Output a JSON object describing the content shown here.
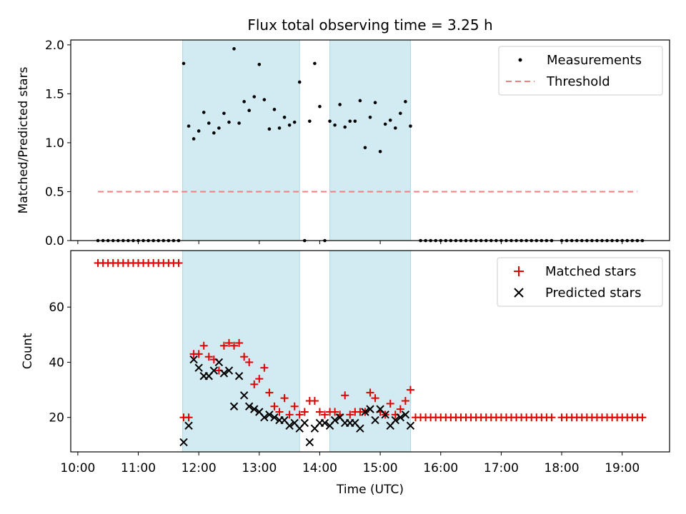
{
  "chart_data": {
    "title": "Flux total observing time = 3.25 h",
    "xlabel": "Time (UTC)",
    "x_ticks": [
      "10:00",
      "11:00",
      "12:00",
      "13:00",
      "14:00",
      "15:00",
      "16:00",
      "17:00",
      "18:00",
      "19:00"
    ],
    "xlim": [
      "09:53",
      "19:47"
    ],
    "colors": {
      "measurement": "#000000",
      "threshold": "#f08080",
      "matched": "#e00000",
      "predicted": "#000000",
      "shade": "#add8e6"
    },
    "shaded_intervals": [
      [
        "11:44",
        "13:40"
      ],
      [
        "14:10",
        "15:30"
      ]
    ],
    "panels": [
      {
        "type": "scatter",
        "ylabel": "Matched/Predicted stars",
        "ylim": [
          0,
          2.05
        ],
        "y_ticks": [
          "0.0",
          "0.5",
          "1.0",
          "1.5",
          "2.0"
        ],
        "legend": [
          "Measurements",
          "Threshold"
        ],
        "legend_position": "top-right",
        "threshold": {
          "y": 0.5,
          "x_range": [
            "10:20",
            "19:15"
          ]
        },
        "zero_points": {
          "before": {
            "start": "10:20",
            "end": "11:40",
            "step_min": 5
          },
          "after": [
            {
              "start": "15:40",
              "end": "17:50",
              "step_min": 5
            },
            {
              "start": "18:00",
              "end": "19:20",
              "step_min": 5
            }
          ]
        },
        "points": [
          [
            "11:45",
            1.81
          ],
          [
            "11:50",
            1.17
          ],
          [
            "11:55",
            1.04
          ],
          [
            "12:00",
            1.12
          ],
          [
            "12:05",
            1.31
          ],
          [
            "12:10",
            1.2
          ],
          [
            "12:15",
            1.1
          ],
          [
            "12:20",
            1.15
          ],
          [
            "12:25",
            1.3
          ],
          [
            "12:30",
            1.21
          ],
          [
            "12:35",
            1.96
          ],
          [
            "12:40",
            1.2
          ],
          [
            "12:45",
            1.42
          ],
          [
            "12:50",
            1.33
          ],
          [
            "12:55",
            1.47
          ],
          [
            "13:00",
            1.8
          ],
          [
            "13:05",
            1.44
          ],
          [
            "13:10",
            1.14
          ],
          [
            "13:15",
            1.34
          ],
          [
            "13:20",
            1.15
          ],
          [
            "13:25",
            1.26
          ],
          [
            "13:30",
            1.18
          ],
          [
            "13:35",
            1.21
          ],
          [
            "13:40",
            1.62
          ],
          [
            "13:45",
            0.0
          ],
          [
            "13:50",
            1.22
          ],
          [
            "13:55",
            1.81
          ],
          [
            "14:00",
            1.37
          ],
          [
            "14:05",
            0.0
          ],
          [
            "14:10",
            1.22
          ],
          [
            "14:15",
            1.18
          ],
          [
            "14:20",
            1.39
          ],
          [
            "14:25",
            1.16
          ],
          [
            "14:30",
            1.22
          ],
          [
            "14:35",
            1.22
          ],
          [
            "14:40",
            1.43
          ],
          [
            "14:45",
            0.95
          ],
          [
            "14:50",
            1.26
          ],
          [
            "14:55",
            1.41
          ],
          [
            "15:00",
            0.91
          ],
          [
            "15:05",
            1.19
          ],
          [
            "15:10",
            1.23
          ],
          [
            "15:15",
            1.15
          ],
          [
            "15:20",
            1.3
          ],
          [
            "15:25",
            1.42
          ],
          [
            "15:30",
            1.17
          ]
        ]
      },
      {
        "type": "scatter",
        "ylabel": "Count",
        "ylim": [
          7.5,
          80.5
        ],
        "y_ticks": [
          "20",
          "40",
          "60"
        ],
        "legend": [
          "Matched stars",
          "Predicted stars"
        ],
        "legend_position": "top-right",
        "matched_constant": [
          {
            "start": "10:20",
            "end": "11:40",
            "step_min": 5,
            "value": 76
          },
          {
            "start": "15:35",
            "end": "17:50",
            "step_min": 5,
            "value": 20
          },
          {
            "start": "18:00",
            "end": "19:20",
            "step_min": 5,
            "value": 20
          }
        ],
        "matched": [
          [
            "11:45",
            20
          ],
          [
            "11:50",
            20
          ],
          [
            "11:55",
            43
          ],
          [
            "12:00",
            43
          ],
          [
            "12:05",
            46
          ],
          [
            "12:10",
            42
          ],
          [
            "12:15",
            41
          ],
          [
            "12:20",
            37
          ],
          [
            "12:25",
            46
          ],
          [
            "12:30",
            47
          ],
          [
            "12:35",
            46
          ],
          [
            "12:40",
            47
          ],
          [
            "12:45",
            42
          ],
          [
            "12:50",
            40
          ],
          [
            "12:55",
            32
          ],
          [
            "13:00",
            34
          ],
          [
            "13:05",
            38
          ],
          [
            "13:10",
            29
          ],
          [
            "13:15",
            24
          ],
          [
            "13:20",
            22
          ],
          [
            "13:25",
            27
          ],
          [
            "13:30",
            21
          ],
          [
            "13:35",
            24
          ],
          [
            "13:40",
            21
          ],
          [
            "13:45",
            22
          ],
          [
            "13:50",
            26
          ],
          [
            "13:55",
            26
          ],
          [
            "14:00",
            22
          ],
          [
            "14:05",
            21
          ],
          [
            "14:10",
            22
          ],
          [
            "14:15",
            22
          ],
          [
            "14:20",
            21
          ],
          [
            "14:25",
            28
          ],
          [
            "14:30",
            21
          ],
          [
            "14:35",
            22
          ],
          [
            "14:40",
            22
          ],
          [
            "14:45",
            22
          ],
          [
            "14:50",
            29
          ],
          [
            "14:55",
            27
          ],
          [
            "15:00",
            22
          ],
          [
            "15:05",
            21
          ],
          [
            "15:10",
            25
          ],
          [
            "15:15",
            21
          ],
          [
            "15:20",
            23
          ],
          [
            "15:25",
            26
          ],
          [
            "15:30",
            30
          ]
        ],
        "predicted": [
          [
            "11:45",
            11
          ],
          [
            "11:50",
            17
          ],
          [
            "11:55",
            41
          ],
          [
            "12:00",
            38
          ],
          [
            "12:05",
            35
          ],
          [
            "12:10",
            35
          ],
          [
            "12:15",
            37
          ],
          [
            "12:20",
            40
          ],
          [
            "12:25",
            36
          ],
          [
            "12:30",
            37
          ],
          [
            "12:35",
            24
          ],
          [
            "12:40",
            35
          ],
          [
            "12:45",
            28
          ],
          [
            "12:50",
            24
          ],
          [
            "12:55",
            23
          ],
          [
            "13:00",
            22
          ],
          [
            "13:05",
            20
          ],
          [
            "13:10",
            21
          ],
          [
            "13:15",
            20
          ],
          [
            "13:20",
            19
          ],
          [
            "13:25",
            19
          ],
          [
            "13:30",
            17
          ],
          [
            "13:35",
            18
          ],
          [
            "13:40",
            16
          ],
          [
            "13:45",
            18
          ],
          [
            "13:50",
            11
          ],
          [
            "13:55",
            16
          ],
          [
            "14:00",
            18
          ],
          [
            "14:05",
            18
          ],
          [
            "14:10",
            17
          ],
          [
            "14:15",
            19
          ],
          [
            "14:20",
            20
          ],
          [
            "14:25",
            18
          ],
          [
            "14:30",
            18
          ],
          [
            "14:35",
            18
          ],
          [
            "14:40",
            16
          ],
          [
            "14:45",
            22
          ],
          [
            "14:50",
            23
          ],
          [
            "14:55",
            19
          ],
          [
            "15:00",
            23
          ],
          [
            "15:05",
            21
          ],
          [
            "15:10",
            17
          ],
          [
            "15:15",
            19
          ],
          [
            "15:20",
            20
          ],
          [
            "15:25",
            21
          ],
          [
            "15:30",
            17
          ]
        ]
      }
    ]
  }
}
